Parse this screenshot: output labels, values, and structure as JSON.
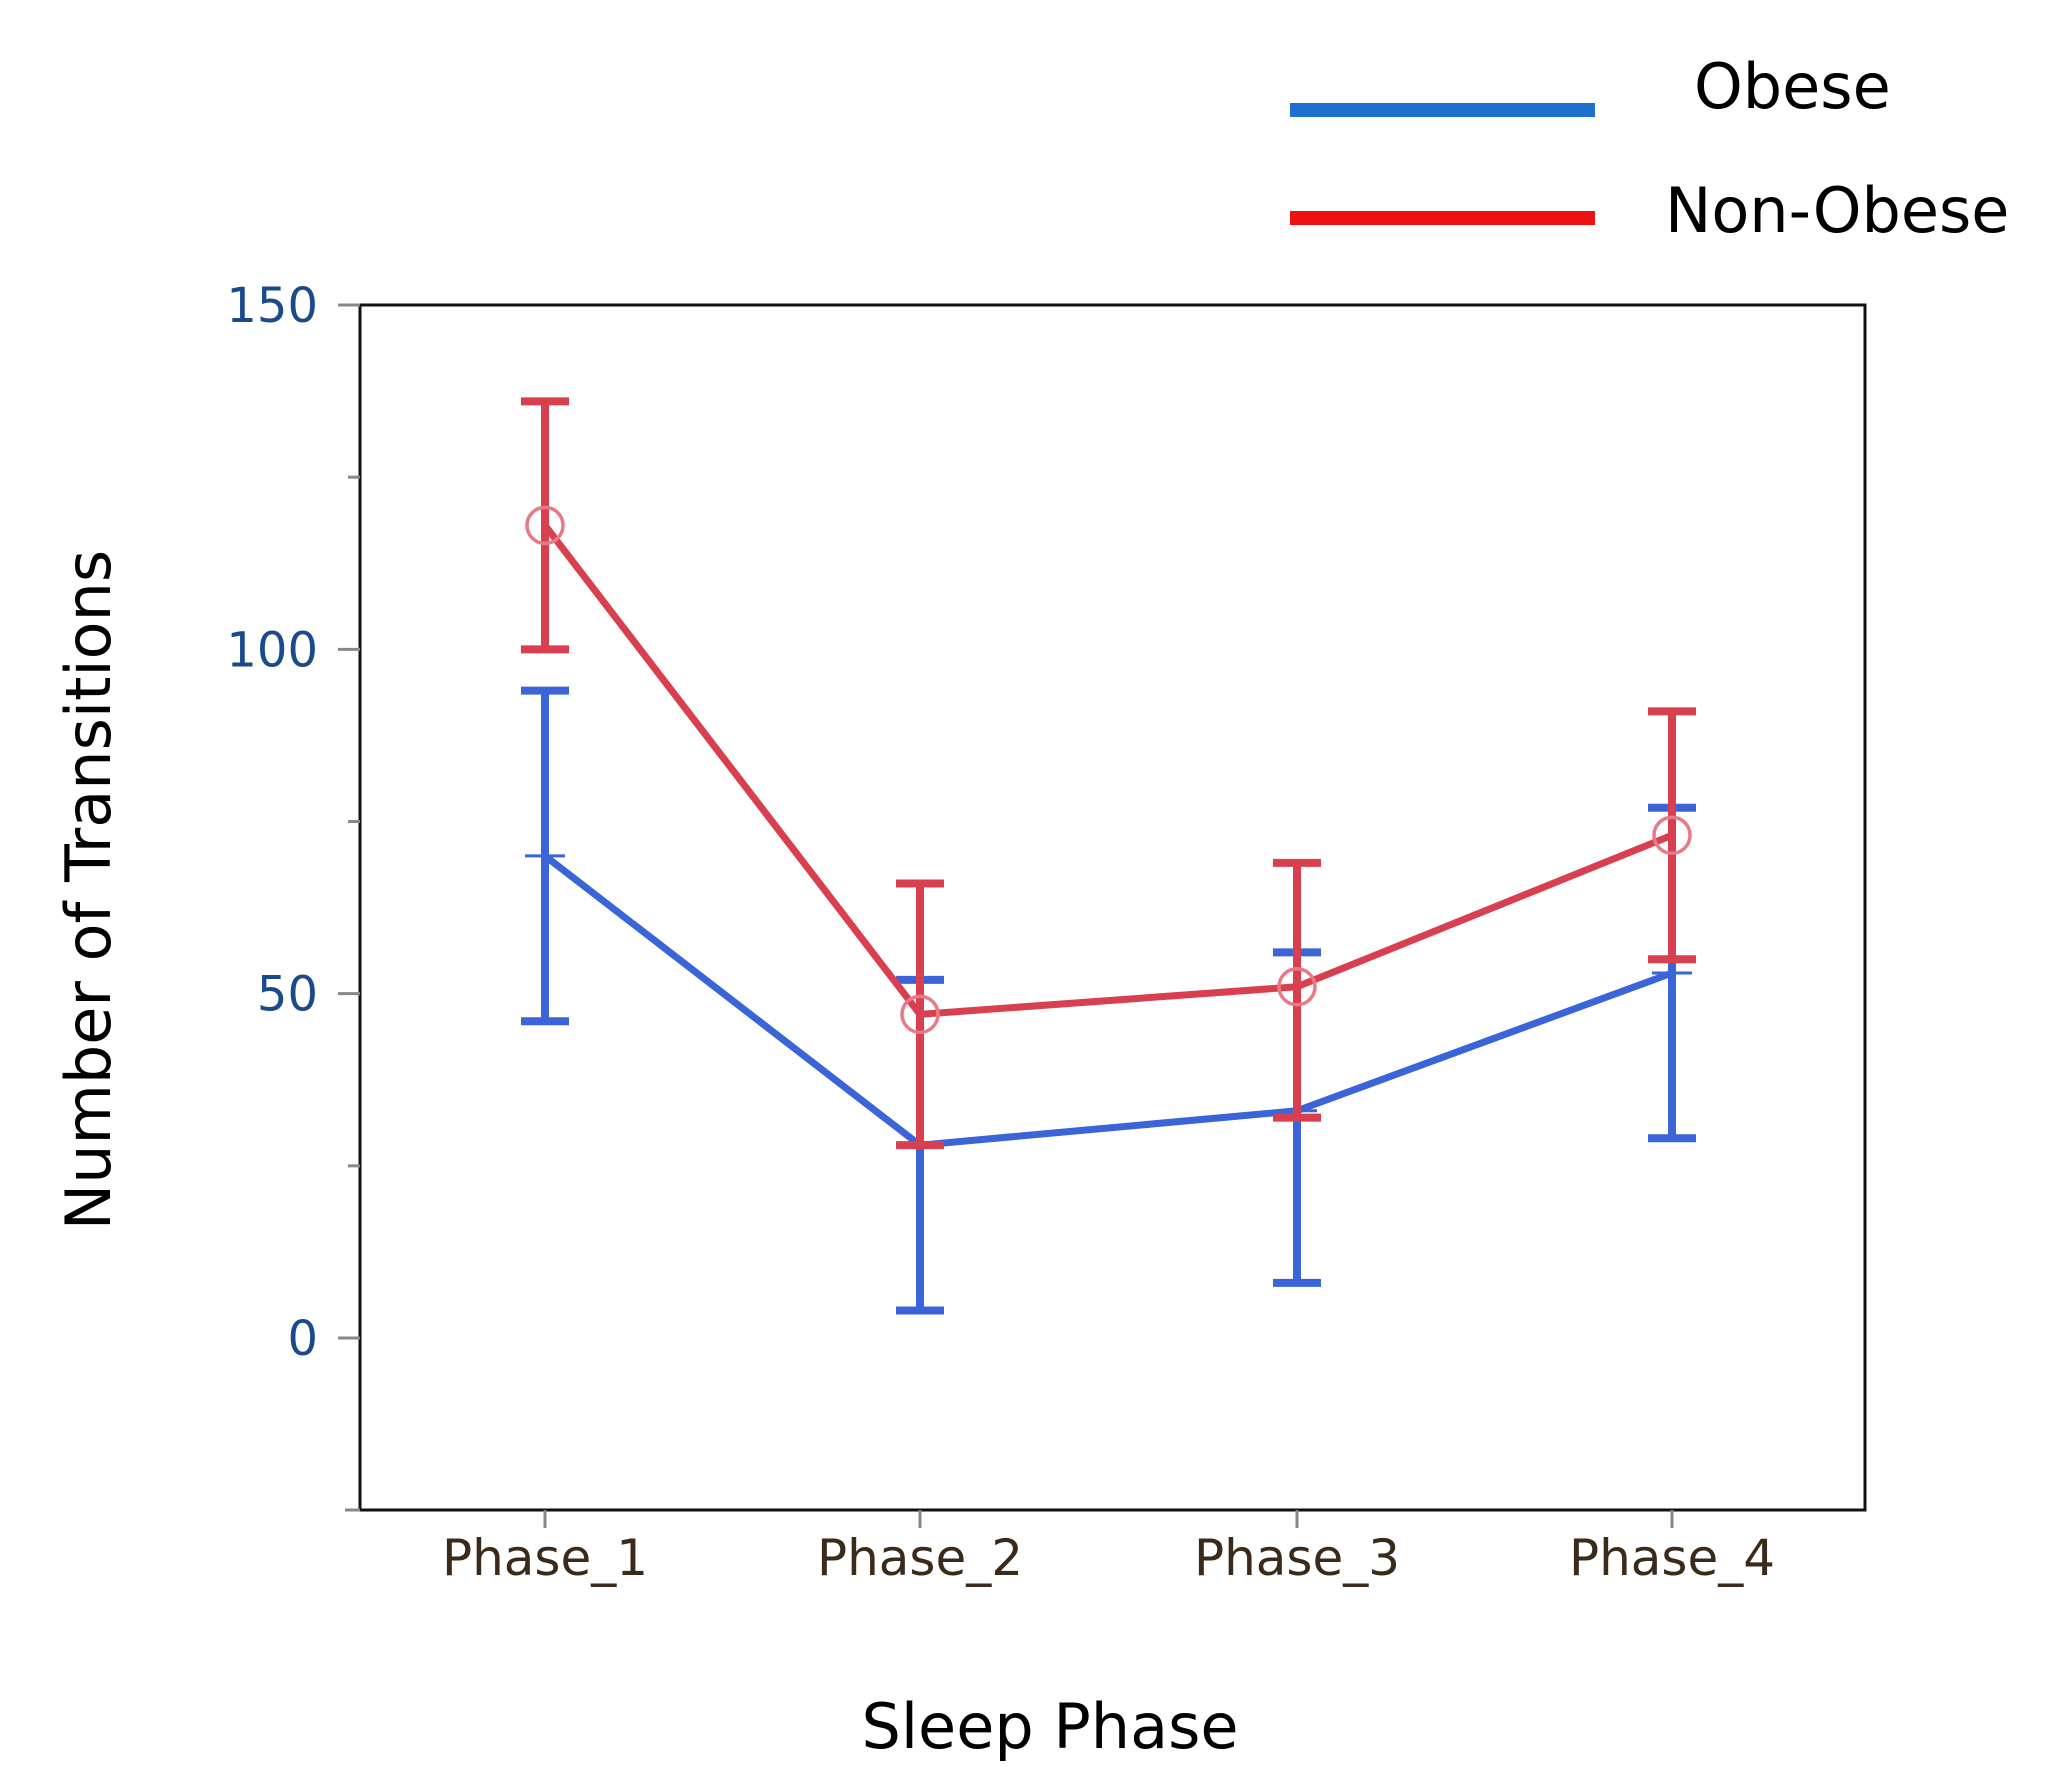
{
  "chart_data": {
    "type": "line",
    "title": "",
    "xlabel": "Sleep Phase",
    "ylabel": "Number of Transitions",
    "categories": [
      "Phase_1",
      "Phase_2",
      "Phase_3",
      "Phase_4"
    ],
    "ylim": [
      -25,
      150
    ],
    "yticks": [
      0,
      50,
      100,
      150
    ],
    "yticks_labels": [
      "0",
      "50",
      "100",
      "150"
    ],
    "grid": false,
    "legend_position": "top-right",
    "series": [
      {
        "name": "Obese",
        "legend_label": "Obese",
        "color": "#3a64d8",
        "legend_color": "#1f6fd0",
        "marker": "none",
        "values": [
          70,
          28,
          33,
          53
        ],
        "lower": [
          46,
          4,
          8,
          29
        ],
        "upper": [
          94,
          52,
          56,
          77
        ]
      },
      {
        "name": "Non-Obese",
        "legend_label": "Non-Obese",
        "color": "#d84050",
        "legend_color": "#ee1111",
        "marker": "circle",
        "values": [
          118,
          47,
          51,
          73
        ],
        "lower": [
          100,
          28,
          32,
          55
        ],
        "upper": [
          136,
          66,
          69,
          91
        ]
      }
    ]
  }
}
